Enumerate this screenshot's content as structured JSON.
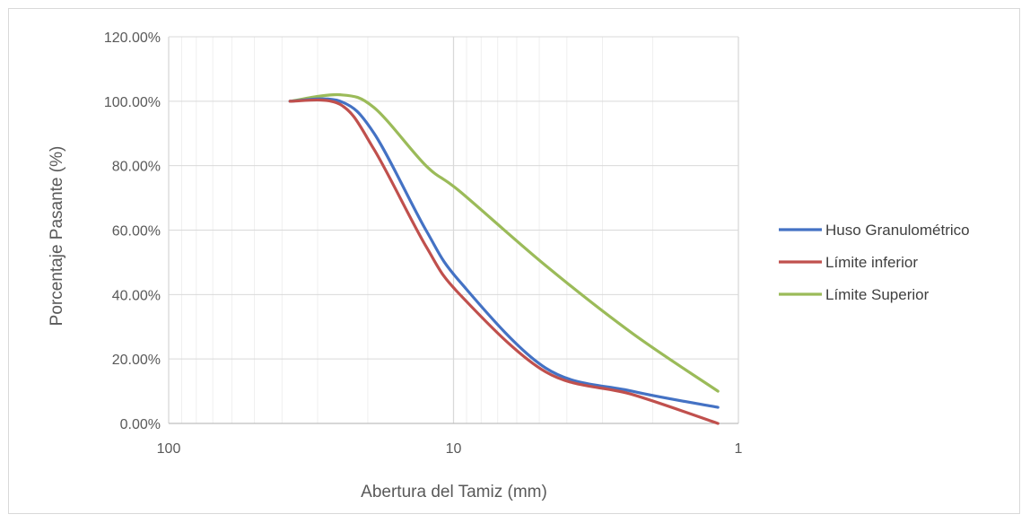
{
  "chart_data": {
    "type": "line",
    "title": "",
    "xlabel": "Abertura del Tamiz (mm)",
    "ylabel": "Porcentaje Pasante (%)",
    "x_scale": "log",
    "x_reversed": true,
    "xlim": [
      100,
      1
    ],
    "ylim": [
      0,
      1.2
    ],
    "x_ticks": [
      {
        "value": 100,
        "label": "100"
      },
      {
        "value": 10,
        "label": "10"
      },
      {
        "value": 1,
        "label": "1"
      }
    ],
    "y_ticks": [
      {
        "value": 0,
        "label": "0.00%"
      },
      {
        "value": 0.2,
        "label": "20.00%"
      },
      {
        "value": 0.4,
        "label": "40.00%"
      },
      {
        "value": 0.6,
        "label": "60.00%"
      },
      {
        "value": 0.8,
        "label": "80.00%"
      },
      {
        "value": 1.0,
        "label": "100.00%"
      },
      {
        "value": 1.2,
        "label": "120.00%"
      }
    ],
    "grid": {
      "major": true,
      "minor_x": true
    },
    "legend_position": "right",
    "series": [
      {
        "name": "Huso Granulométrico",
        "color": "#4472c4",
        "points": [
          [
            37.5,
            1.0
          ],
          [
            25,
            1.0
          ],
          [
            19,
            0.9
          ],
          [
            12.5,
            0.6
          ],
          [
            9.5,
            0.44
          ],
          [
            4.75,
            0.172
          ],
          [
            2.36,
            0.1
          ],
          [
            1.18,
            0.05
          ]
        ]
      },
      {
        "name": "Límite inferior",
        "color": "#c0504d",
        "points": [
          [
            37.5,
            1.0
          ],
          [
            25,
            0.99
          ],
          [
            19,
            0.85
          ],
          [
            12.5,
            0.55
          ],
          [
            9.5,
            0.4
          ],
          [
            4.75,
            0.16
          ],
          [
            2.36,
            0.09
          ],
          [
            1.18,
            0.0
          ]
        ]
      },
      {
        "name": "Límite Superior",
        "color": "#9bbb59",
        "points": [
          [
            37.5,
            1.0
          ],
          [
            25,
            1.02
          ],
          [
            19,
            0.98
          ],
          [
            12.5,
            0.8
          ],
          [
            9.5,
            0.72
          ],
          [
            4.75,
            0.49
          ],
          [
            2.36,
            0.28
          ],
          [
            1.18,
            0.1
          ]
        ]
      }
    ]
  }
}
